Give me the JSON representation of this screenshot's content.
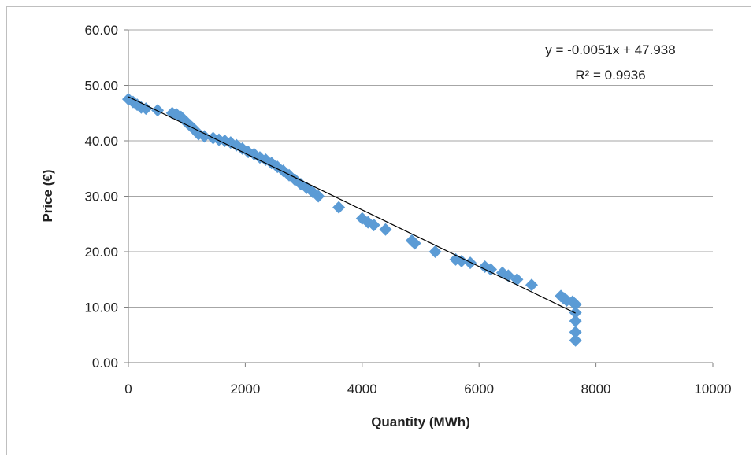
{
  "chart_data": {
    "type": "scatter",
    "title": "",
    "xlabel": "Quantity (MWh)",
    "ylabel": "Price (€)",
    "xlim": [
      0,
      10000
    ],
    "ylim": [
      0,
      60
    ],
    "x_ticks": [
      "0",
      "2000",
      "4000",
      "6000",
      "8000",
      "10000"
    ],
    "y_ticks": [
      "0.00",
      "10.00",
      "20.00",
      "30.00",
      "40.00",
      "50.00",
      "60.00"
    ],
    "grid": "horizontal",
    "marker_color": "#5b9bd5",
    "trendline": {
      "slope": -0.0051,
      "intercept": 47.938,
      "x_range": [
        0,
        7650
      ],
      "color": "#000000",
      "equation": "y = -0.0051x + 47.938",
      "r_squared": "R² = 0.9936"
    },
    "series": [
      {
        "points": [
          [
            0,
            47.5
          ],
          [
            80,
            47.0
          ],
          [
            150,
            46.5
          ],
          [
            220,
            46.0
          ],
          [
            300,
            45.8
          ],
          [
            500,
            45.5
          ],
          [
            750,
            45.0
          ],
          [
            820,
            44.8
          ],
          [
            900,
            44.3
          ],
          [
            950,
            43.8
          ],
          [
            1000,
            43.3
          ],
          [
            1050,
            42.8
          ],
          [
            1100,
            42.3
          ],
          [
            1150,
            41.8
          ],
          [
            1200,
            41.2
          ],
          [
            1300,
            40.8
          ],
          [
            1450,
            40.5
          ],
          [
            1550,
            40.2
          ],
          [
            1650,
            40.0
          ],
          [
            1750,
            39.7
          ],
          [
            1850,
            39.2
          ],
          [
            1950,
            38.6
          ],
          [
            2050,
            38.0
          ],
          [
            2150,
            37.6
          ],
          [
            2250,
            37.0
          ],
          [
            2350,
            36.6
          ],
          [
            2450,
            36.0
          ],
          [
            2550,
            35.3
          ],
          [
            2650,
            34.6
          ],
          [
            2750,
            33.8
          ],
          [
            2850,
            33.0
          ],
          [
            2950,
            32.2
          ],
          [
            3050,
            31.5
          ],
          [
            3150,
            30.8
          ],
          [
            3250,
            30.0
          ],
          [
            3600,
            28.0
          ],
          [
            4000,
            26.0
          ],
          [
            4100,
            25.3
          ],
          [
            4200,
            24.8
          ],
          [
            4400,
            24.0
          ],
          [
            4850,
            22.0
          ],
          [
            4900,
            21.5
          ],
          [
            5250,
            20.0
          ],
          [
            5600,
            18.6
          ],
          [
            5700,
            18.3
          ],
          [
            5850,
            18.0
          ],
          [
            6100,
            17.3
          ],
          [
            6200,
            16.8
          ],
          [
            6400,
            16.2
          ],
          [
            6500,
            15.7
          ],
          [
            6650,
            15.0
          ],
          [
            6900,
            14.0
          ],
          [
            7400,
            12.0
          ],
          [
            7450,
            11.6
          ],
          [
            7500,
            11.2
          ],
          [
            7600,
            11.0
          ],
          [
            7650,
            10.5
          ],
          [
            7650,
            9.0
          ],
          [
            7650,
            7.5
          ],
          [
            7650,
            5.5
          ],
          [
            7650,
            4.0
          ]
        ]
      }
    ]
  }
}
